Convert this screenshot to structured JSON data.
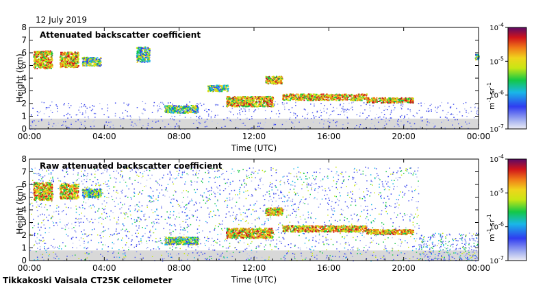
{
  "date": "12 July 2019",
  "footer": "Tikkakoski Vaisala CT25K ceilometer",
  "chart_data": [
    {
      "type": "heatmap",
      "title": "Attenuated backscatter coefficient",
      "xlabel": "Time (UTC)",
      "ylabel": "Height (km)",
      "xticks": [
        "00:00",
        "04:00",
        "08:00",
        "12:00",
        "16:00",
        "20:00",
        "00:00"
      ],
      "yticks": [
        "0",
        "1",
        "2",
        "3",
        "4",
        "5",
        "6",
        "7",
        "8"
      ],
      "xlim": [
        0,
        24
      ],
      "ylim": [
        0,
        8
      ],
      "noise": "low",
      "layers": [
        {
          "t": [
            0.2,
            1.2
          ],
          "h": [
            4.8,
            6.2
          ],
          "level": "high"
        },
        {
          "t": [
            1.6,
            2.6
          ],
          "h": [
            4.9,
            6.1
          ],
          "level": "high"
        },
        {
          "t": [
            2.8,
            3.8
          ],
          "h": [
            5.0,
            5.7
          ],
          "level": "mid"
        },
        {
          "t": [
            5.7,
            6.4
          ],
          "h": [
            5.3,
            6.5
          ],
          "level": "mid"
        },
        {
          "t": [
            7.2,
            9.0
          ],
          "h": [
            1.3,
            1.9
          ],
          "level": "mid"
        },
        {
          "t": [
            9.5,
            10.6
          ],
          "h": [
            3.0,
            3.5
          ],
          "level": "mid"
        },
        {
          "t": [
            10.5,
            13.0
          ],
          "h": [
            1.8,
            2.6
          ],
          "level": "high"
        },
        {
          "t": [
            12.6,
            13.5
          ],
          "h": [
            3.6,
            4.2
          ],
          "level": "high"
        },
        {
          "t": [
            13.5,
            18.0
          ],
          "h": [
            2.3,
            2.8
          ],
          "level": "high"
        },
        {
          "t": [
            18.0,
            20.5
          ],
          "h": [
            2.1,
            2.5
          ],
          "level": "high"
        },
        {
          "t": [
            23.8,
            24.0
          ],
          "h": [
            5.5,
            5.9
          ],
          "level": "mid"
        }
      ]
    },
    {
      "type": "heatmap",
      "title": "Raw attenuated backscatter coefficient",
      "xlabel": "Time (UTC)",
      "ylabel": "Height (km)",
      "xticks": [
        "00:00",
        "04:00",
        "08:00",
        "12:00",
        "16:00",
        "20:00",
        "00:00"
      ],
      "yticks": [
        "0",
        "1",
        "2",
        "3",
        "4",
        "5",
        "6",
        "7",
        "8"
      ],
      "xlim": [
        0,
        24
      ],
      "ylim": [
        0,
        8
      ],
      "noise": "high",
      "layers": [
        {
          "t": [
            0.2,
            1.2
          ],
          "h": [
            4.8,
            6.2
          ],
          "level": "high"
        },
        {
          "t": [
            1.6,
            2.6
          ],
          "h": [
            4.9,
            6.1
          ],
          "level": "high"
        },
        {
          "t": [
            2.8,
            3.8
          ],
          "h": [
            5.0,
            5.7
          ],
          "level": "mid"
        },
        {
          "t": [
            7.2,
            9.0
          ],
          "h": [
            1.3,
            1.9
          ],
          "level": "mid"
        },
        {
          "t": [
            10.5,
            13.0
          ],
          "h": [
            1.8,
            2.6
          ],
          "level": "high"
        },
        {
          "t": [
            12.6,
            13.5
          ],
          "h": [
            3.6,
            4.2
          ],
          "level": "high"
        },
        {
          "t": [
            13.5,
            18.0
          ],
          "h": [
            2.3,
            2.8
          ],
          "level": "high"
        },
        {
          "t": [
            18.0,
            20.5
          ],
          "h": [
            2.1,
            2.5
          ],
          "level": "high"
        }
      ]
    }
  ],
  "colorbar": {
    "ticks": [
      "10",
      "10",
      "10",
      "10"
    ],
    "exponents": [
      "-4",
      "-5",
      "-6",
      "-7"
    ],
    "unit": "m",
    "unit_exp": "-1",
    "unit2": "sr",
    "unit2_exp": "-1"
  }
}
